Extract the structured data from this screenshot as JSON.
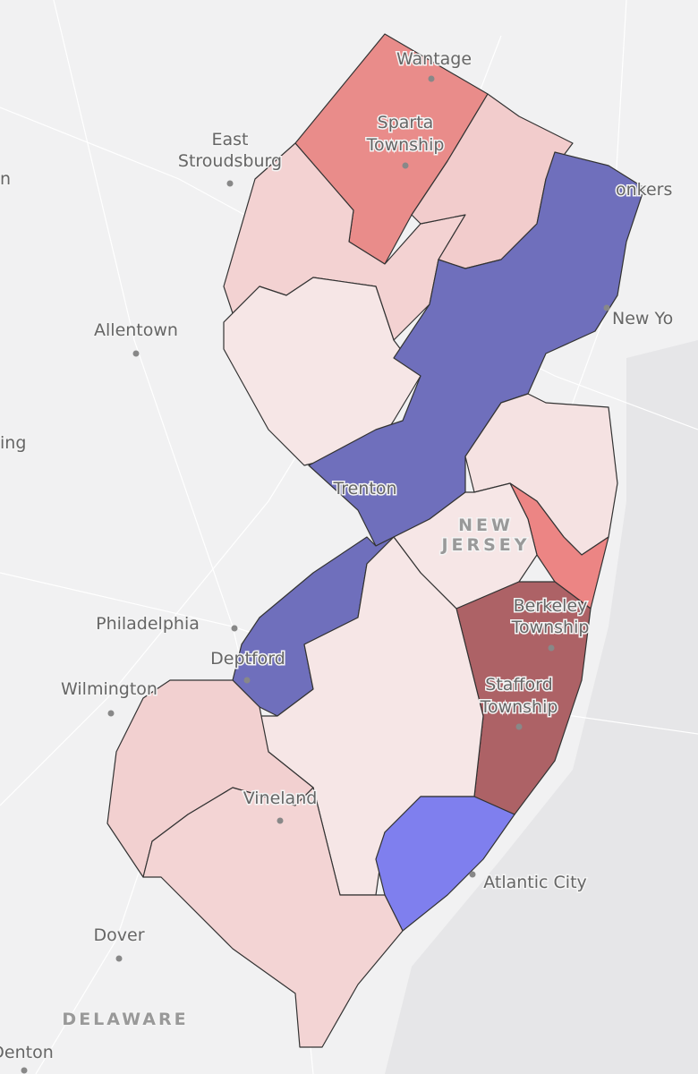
{
  "map": {
    "labels": [
      {
        "lines": [
          "Wantage"
        ]
      },
      {
        "lines": [
          "Sparta",
          "Township"
        ]
      },
      {
        "lines": [
          "East",
          "Stroudsburg"
        ]
      },
      {
        "lines": [
          "onkers"
        ]
      },
      {
        "lines": [
          "New Yo"
        ]
      },
      {
        "lines": [
          "Allentown"
        ]
      },
      {
        "lines": [
          "ing"
        ]
      },
      {
        "lines": [
          "n"
        ]
      },
      {
        "lines": [
          "Trenton"
        ]
      },
      {
        "lines": [
          "NEW",
          "JERSEY"
        ]
      },
      {
        "lines": [
          "Philadelphia"
        ]
      },
      {
        "lines": [
          "Berkeley",
          "Township"
        ]
      },
      {
        "lines": [
          "Deptford"
        ]
      },
      {
        "lines": [
          "Wilmington"
        ]
      },
      {
        "lines": [
          "Stafford",
          "Township"
        ]
      },
      {
        "lines": [
          "Vineland"
        ]
      },
      {
        "lines": [
          "Atlantic City"
        ]
      },
      {
        "lines": [
          "Dover"
        ]
      },
      {
        "lines": [
          "DELAWARE"
        ]
      },
      {
        "lines": [
          "Denton"
        ]
      }
    ]
  }
}
